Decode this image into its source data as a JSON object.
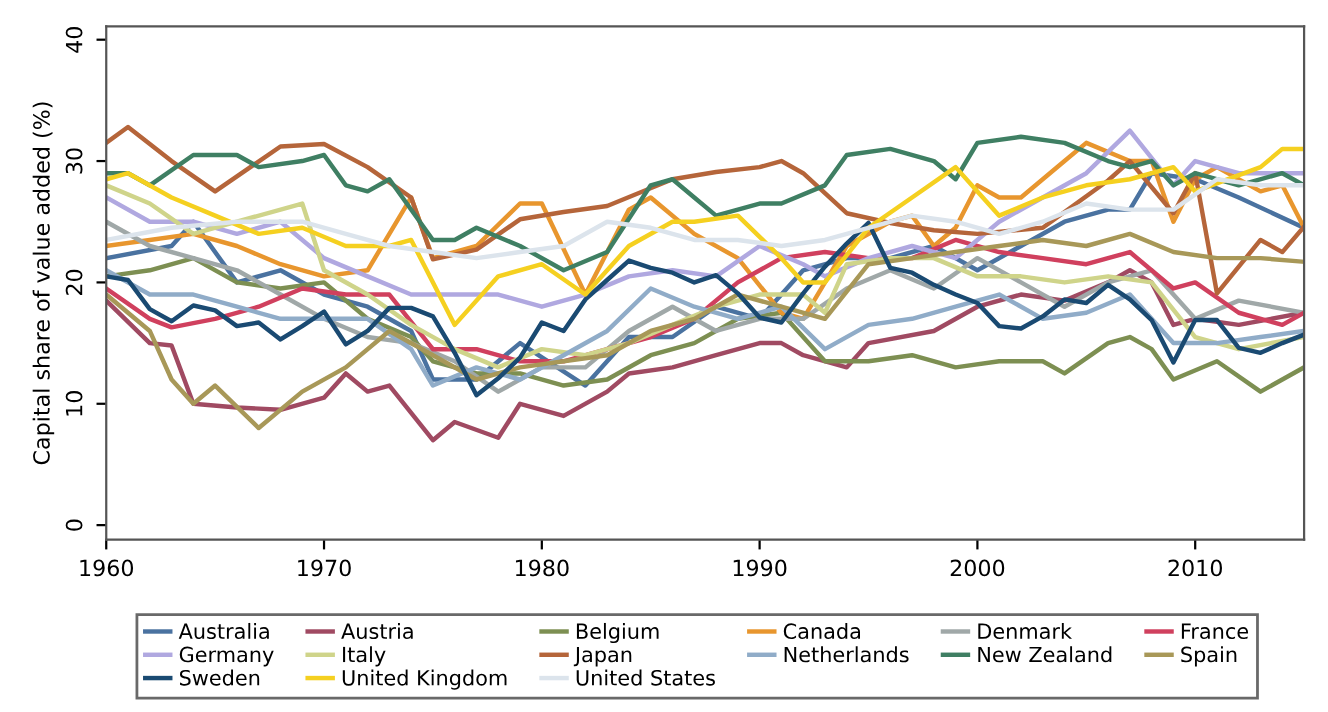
{
  "chart_data": {
    "type": "line",
    "ylabel": "Capital share of value added (%)",
    "xlim": [
      1960,
      2015
    ],
    "xticks": [
      1960,
      1970,
      1980,
      1990,
      2000,
      2010
    ],
    "ylim": [
      -1.2,
      41.1
    ],
    "yticks": [
      0,
      10,
      20,
      30,
      40
    ],
    "grid": false,
    "legend": "bottom",
    "marker": "none",
    "line_style": "solid",
    "series": [
      {
        "name": "Australia",
        "color": "#4a72a0",
        "x": [
          1960,
          1963,
          1964,
          1966,
          1968,
          1970,
          1972,
          1974,
          1975,
          1977,
          1979,
          1982,
          1984,
          1986,
          1988,
          1990,
          1992,
          1994,
          1996,
          1998,
          2000,
          2002,
          2004,
          2006,
          2007,
          2008,
          2010,
          2012,
          2015
        ],
        "values": [
          22,
          23,
          25,
          20,
          21,
          19,
          18,
          16,
          12,
          12,
          15,
          11.5,
          15.5,
          15.5,
          18,
          17,
          21,
          22,
          22,
          23,
          21,
          23,
          25,
          26,
          26,
          29,
          28.5,
          27,
          24.5
        ]
      },
      {
        "name": "Austria",
        "color": "#a04a62",
        "x": [
          1960,
          1962,
          1963,
          1964,
          1966,
          1968,
          1970,
          1971,
          1972,
          1973,
          1975,
          1976,
          1978,
          1979,
          1981,
          1983,
          1984,
          1986,
          1988,
          1990,
          1991,
          1992,
          1994,
          1995,
          1998,
          2000,
          2002,
          2004,
          2006,
          2007,
          2008,
          2009,
          2010,
          2012,
          2015
        ],
        "values": [
          18.5,
          15,
          14.8,
          10,
          9.7,
          9.5,
          10.5,
          12.5,
          11,
          11.5,
          7,
          8.5,
          7.2,
          10,
          9,
          11,
          12.5,
          13,
          14,
          15,
          15,
          14,
          13,
          15,
          16,
          18,
          19,
          18.5,
          20,
          21,
          20,
          16.5,
          17,
          16.5,
          17.5
        ]
      },
      {
        "name": "Belgium",
        "color": "#7d8f52",
        "x": [
          1960,
          1962,
          1964,
          1966,
          1968,
          1970,
          1972,
          1974,
          1975,
          1977,
          1979,
          1981,
          1983,
          1985,
          1987,
          1989,
          1991,
          1993,
          1995,
          1997,
          1999,
          2001,
          2003,
          2004,
          2006,
          2007,
          2008,
          2009,
          2011,
          2013,
          2015
        ],
        "values": [
          20.5,
          21,
          22,
          20,
          19.5,
          20,
          17,
          15.5,
          13.5,
          12.5,
          12.5,
          11.5,
          12,
          14,
          15,
          17,
          17.5,
          13.5,
          13.5,
          14,
          13,
          13.5,
          13.5,
          12.5,
          15,
          15.5,
          14.5,
          12,
          13.5,
          11,
          13
        ]
      },
      {
        "name": "Canada",
        "color": "#e8962e",
        "x": [
          1960,
          1962,
          1964,
          1966,
          1968,
          1970,
          1972,
          1974,
          1975,
          1977,
          1979,
          1980,
          1982,
          1984,
          1985,
          1987,
          1989,
          1991,
          1992,
          1994,
          1996,
          1997,
          1998,
          1999,
          2000,
          2001,
          2002,
          2004,
          2005,
          2007,
          2008,
          2009,
          2010,
          2011,
          2013,
          2014,
          2015
        ],
        "values": [
          23,
          23.5,
          24,
          23,
          21.5,
          20.5,
          21,
          27,
          22,
          23,
          26.5,
          26.5,
          19,
          26,
          27,
          24,
          22,
          17.5,
          17,
          23,
          25,
          25.5,
          23,
          24.5,
          28,
          27,
          27,
          30,
          31.5,
          30,
          30,
          25,
          28.5,
          29.5,
          27.5,
          28,
          24.5
        ]
      },
      {
        "name": "Denmark",
        "color": "#a0a8a8",
        "x": [
          1960,
          1962,
          1964,
          1966,
          1968,
          1970,
          1972,
          1974,
          1976,
          1978,
          1980,
          1982,
          1984,
          1986,
          1988,
          1990,
          1992,
          1994,
          1996,
          1998,
          2000,
          2002,
          2004,
          2006,
          2008,
          2010,
          2012,
          2015
        ],
        "values": [
          25,
          23,
          22,
          21,
          19,
          17,
          15.5,
          15,
          13.5,
          11,
          13,
          13,
          16,
          18,
          16,
          17,
          17,
          19.5,
          21,
          19.5,
          22,
          20,
          18,
          20,
          21,
          17,
          18.5,
          17.5
        ]
      },
      {
        "name": "France",
        "color": "#d0405e",
        "x": [
          1960,
          1962,
          1963,
          1965,
          1967,
          1969,
          1971,
          1973,
          1975,
          1977,
          1979,
          1981,
          1983,
          1985,
          1987,
          1989,
          1991,
          1993,
          1995,
          1997,
          1999,
          2001,
          2003,
          2005,
          2007,
          2009,
          2010,
          2012,
          2014,
          2015
        ],
        "values": [
          19.5,
          17,
          16.3,
          17,
          18,
          19.5,
          19,
          19,
          14.5,
          14.5,
          13.5,
          13.5,
          14.5,
          15.5,
          17,
          20,
          22,
          22.5,
          22,
          22,
          23.5,
          22.5,
          22,
          21.5,
          22.5,
          19.5,
          20,
          17.5,
          16.5,
          17.5
        ]
      },
      {
        "name": "Germany",
        "color": "#b0a8e0",
        "x": [
          1960,
          1962,
          1964,
          1966,
          1968,
          1970,
          1972,
          1974,
          1976,
          1978,
          1980,
          1982,
          1984,
          1986,
          1988,
          1990,
          1992,
          1993,
          1995,
          1997,
          1999,
          2001,
          2003,
          2005,
          2007,
          2009,
          2010,
          2012,
          2015
        ],
        "values": [
          27,
          25,
          25,
          24,
          25,
          22,
          20.5,
          19,
          19,
          19,
          18,
          19,
          20.5,
          21,
          20.5,
          23,
          21.5,
          20.5,
          22,
          23,
          22,
          25,
          27,
          29,
          32.5,
          28,
          30,
          29,
          29
        ]
      },
      {
        "name": "Italy",
        "color": "#cfd48a",
        "x": [
          1960,
          1962,
          1964,
          1966,
          1969,
          1970,
          1972,
          1974,
          1976,
          1978,
          1980,
          1982,
          1984,
          1986,
          1988,
          1990,
          1992,
          1993,
          1994,
          1996,
          1998,
          2000,
          2002,
          2004,
          2006,
          2008,
          2010,
          2012,
          2015
        ],
        "values": [
          28,
          26.5,
          24,
          25,
          26.5,
          21,
          19,
          16.5,
          14.5,
          13,
          14.5,
          14,
          15,
          16.5,
          18,
          19,
          19,
          17.5,
          21.5,
          22,
          22,
          20.5,
          20.5,
          20,
          20.5,
          20,
          15.5,
          14.5,
          15.5
        ]
      },
      {
        "name": "Japan",
        "color": "#b5653a",
        "x": [
          1960,
          1961,
          1963,
          1965,
          1968,
          1970,
          1972,
          1974,
          1975,
          1977,
          1979,
          1981,
          1983,
          1986,
          1988,
          1990,
          1991,
          1992,
          1994,
          1996,
          1998,
          2000,
          2003,
          2006,
          2007,
          2009,
          2010,
          2011,
          2013,
          2014,
          2015
        ],
        "values": [
          31.5,
          32.8,
          30,
          27.5,
          31.2,
          31.4,
          29.5,
          27,
          21.9,
          22.7,
          25.2,
          25.8,
          26.3,
          28.5,
          29.1,
          29.5,
          30,
          29,
          25.7,
          24.9,
          24.3,
          24,
          24.5,
          28.4,
          30,
          25.7,
          29,
          19.1,
          23.5,
          22.5,
          24.6
        ]
      },
      {
        "name": "Netherlands",
        "color": "#90acc8",
        "x": [
          1960,
          1962,
          1964,
          1966,
          1968,
          1970,
          1972,
          1974,
          1975,
          1977,
          1979,
          1981,
          1983,
          1985,
          1987,
          1989,
          1991,
          1993,
          1995,
          1997,
          1999,
          2001,
          2003,
          2005,
          2007,
          2009,
          2011,
          2013,
          2015
        ],
        "values": [
          21,
          19,
          19,
          18,
          17,
          17,
          17,
          14.5,
          11.5,
          13,
          12,
          14,
          16,
          19.5,
          18,
          17,
          18,
          14.5,
          16.5,
          17,
          18,
          19,
          17,
          17.5,
          19,
          15,
          15,
          15.5,
          16
        ]
      },
      {
        "name": "New Zealand",
        "color": "#3f7f63",
        "x": [
          1960,
          1961,
          1962,
          1964,
          1966,
          1967,
          1969,
          1970,
          1971,
          1972,
          1973,
          1975,
          1976,
          1977,
          1979,
          1981,
          1983,
          1985,
          1986,
          1987,
          1988,
          1990,
          1991,
          1993,
          1994,
          1996,
          1998,
          1999,
          2000,
          2002,
          2004,
          2006,
          2007,
          2008,
          2009,
          2010,
          2012,
          2014,
          2015
        ],
        "values": [
          29,
          29,
          28,
          30.5,
          30.5,
          29.5,
          30,
          30.5,
          28,
          27.5,
          28.5,
          23.5,
          23.5,
          24.5,
          23,
          21,
          22.5,
          28,
          28.5,
          27,
          25.5,
          26.5,
          26.5,
          28,
          30.5,
          31,
          30,
          28.5,
          31.5,
          32,
          31.5,
          30,
          29.5,
          30,
          28,
          29,
          28,
          29,
          28
        ]
      },
      {
        "name": "Spain",
        "color": "#a89858",
        "x": [
          1960,
          1962,
          1963,
          1964,
          1965,
          1967,
          1969,
          1971,
          1973,
          1975,
          1977,
          1979,
          1981,
          1983,
          1985,
          1987,
          1989,
          1991,
          1993,
          1995,
          1997,
          1999,
          2001,
          2003,
          2005,
          2007,
          2009,
          2011,
          2013,
          2015
        ],
        "values": [
          19,
          16,
          12,
          10,
          11.5,
          8,
          11,
          13,
          16,
          14,
          12,
          13,
          13.5,
          14,
          16,
          17,
          19,
          18,
          17,
          21.5,
          22,
          22.5,
          23,
          23.5,
          23,
          24,
          22.5,
          22,
          22,
          21.7
        ]
      },
      {
        "name": "Sweden",
        "color": "#1a4a72",
        "x": [
          1960,
          1961,
          1962,
          1963,
          1964,
          1965,
          1966,
          1967,
          1968,
          1969,
          1970,
          1971,
          1972,
          1973,
          1974,
          1975,
          1976,
          1977,
          1978,
          1979,
          1980,
          1981,
          1982,
          1983,
          1984,
          1985,
          1986,
          1987,
          1988,
          1989,
          1990,
          1991,
          1992,
          1993,
          1994,
          1995,
          1996,
          1997,
          1998,
          1999,
          2000,
          2001,
          2002,
          2003,
          2004,
          2005,
          2006,
          2007,
          2008,
          2009,
          2010,
          2011,
          2012,
          2013,
          2014,
          2015
        ],
        "values": [
          20.5,
          20.2,
          17.8,
          16.8,
          18.1,
          17.7,
          16.4,
          16.7,
          15.3,
          16.4,
          17.6,
          14.9,
          16,
          17.9,
          17.9,
          17.2,
          14.2,
          10.7,
          12.1,
          13.8,
          16.7,
          16,
          18.6,
          20.2,
          21.8,
          21.2,
          20.8,
          20,
          20.6,
          19.1,
          17.1,
          16.7,
          19.1,
          21.3,
          23.2,
          24.9,
          21.2,
          20.8,
          19.8,
          19,
          18.3,
          16.4,
          16.2,
          17.2,
          18.6,
          18.3,
          19.8,
          18.6,
          16.9,
          13.4,
          16.9,
          16.9,
          14.6,
          14.2,
          15,
          15.7
        ]
      },
      {
        "name": "United Kingdom",
        "color": "#f5d020",
        "x": [
          1960,
          1961,
          1963,
          1965,
          1967,
          1969,
          1971,
          1973,
          1974,
          1976,
          1978,
          1980,
          1982,
          1984,
          1986,
          1987,
          1989,
          1991,
          1992,
          1993,
          1995,
          1997,
          1999,
          2000,
          2001,
          2003,
          2005,
          2007,
          2009,
          2010,
          2013,
          2014,
          2015
        ],
        "values": [
          28.5,
          29,
          27,
          25.5,
          24,
          24.5,
          23,
          23,
          23.5,
          16.5,
          20.5,
          21.5,
          19,
          23,
          25,
          25,
          25.5,
          22,
          20,
          20,
          24.5,
          27,
          29.5,
          27.5,
          25.5,
          27,
          28,
          28.5,
          29.5,
          27.5,
          29.5,
          31,
          31
        ]
      },
      {
        "name": "United States",
        "color": "#dce4ec",
        "x": [
          1960,
          1963,
          1966,
          1969,
          1971,
          1973,
          1975,
          1977,
          1979,
          1981,
          1983,
          1985,
          1987,
          1989,
          1991,
          1993,
          1995,
          1997,
          1999,
          2001,
          2003,
          2005,
          2007,
          2009,
          2011,
          2013,
          2015
        ],
        "values": [
          23.5,
          24.5,
          25,
          25,
          24,
          23,
          22.5,
          22,
          22.5,
          23,
          25,
          24.5,
          23.5,
          23.5,
          23,
          23.5,
          24.5,
          25.5,
          25,
          24,
          25,
          26.5,
          26,
          26,
          28.5,
          28,
          28
        ]
      }
    ]
  }
}
